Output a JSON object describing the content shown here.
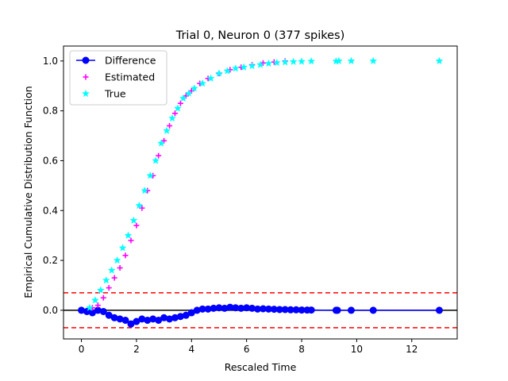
{
  "chart_data": {
    "type": "scatter",
    "title": "Trial 0, Neuron 0 (377 spikes)",
    "xlabel": "Rescaled Time",
    "ylabel": "Empirical Cumulative Distribution Function",
    "xlim": [
      -0.65,
      13.65
    ],
    "ylim": [
      -0.115,
      1.06
    ],
    "x_ticks": [
      0,
      2,
      4,
      6,
      8,
      10,
      12
    ],
    "y_ticks": [
      0.0,
      0.2,
      0.4,
      0.6,
      0.8,
      1.0
    ],
    "x_tick_labels": [
      "0",
      "2",
      "4",
      "6",
      "8",
      "10",
      "12"
    ],
    "y_tick_labels": [
      "0.0",
      "0.2",
      "0.4",
      "0.6",
      "0.8",
      "1.0"
    ],
    "grid": false,
    "legend_position": "top-left",
    "confidence_band": [
      -0.07,
      0.07
    ],
    "zero_line": 0,
    "series": [
      {
        "name": "Difference",
        "marker": "circle",
        "color": "#0000ff",
        "x": [
          0.0,
          0.2,
          0.4,
          0.6,
          0.8,
          1.0,
          1.2,
          1.4,
          1.6,
          1.8,
          2.0,
          2.2,
          2.4,
          2.6,
          2.8,
          3.0,
          3.2,
          3.4,
          3.6,
          3.8,
          4.0,
          4.2,
          4.4,
          4.6,
          4.8,
          5.0,
          5.2,
          5.4,
          5.6,
          5.8,
          6.0,
          6.2,
          6.4,
          6.6,
          6.8,
          7.0,
          7.2,
          7.4,
          7.6,
          7.8,
          8.0,
          8.2,
          8.35,
          9.25,
          9.3,
          9.8,
          10.6,
          13.0
        ],
        "y": [
          0.0,
          -0.005,
          -0.01,
          0.0,
          -0.005,
          -0.02,
          -0.03,
          -0.035,
          -0.04,
          -0.055,
          -0.045,
          -0.035,
          -0.04,
          -0.035,
          -0.04,
          -0.03,
          -0.035,
          -0.03,
          -0.025,
          -0.02,
          -0.01,
          0.0,
          0.005,
          0.005,
          0.008,
          0.01,
          0.008,
          0.012,
          0.01,
          0.008,
          0.01,
          0.008,
          0.005,
          0.006,
          0.005,
          0.004,
          0.003,
          0.003,
          0.002,
          0.002,
          0.001,
          0.001,
          0.001,
          0.0,
          0.0,
          0.0,
          0.0,
          0.0
        ]
      },
      {
        "name": "Estimated",
        "marker": "plus",
        "color": "#ff00ff",
        "x": [
          0.4,
          0.6,
          0.8,
          1.0,
          1.2,
          1.4,
          1.6,
          1.8,
          2.0,
          2.2,
          2.4,
          2.6,
          2.8,
          3.0,
          3.2,
          3.4,
          3.6,
          3.8,
          4.0,
          4.3,
          4.6,
          5.0,
          5.4,
          5.8,
          6.2,
          6.6,
          7.0,
          7.4
        ],
        "y": [
          0.01,
          0.02,
          0.05,
          0.09,
          0.13,
          0.17,
          0.22,
          0.28,
          0.34,
          0.41,
          0.48,
          0.54,
          0.62,
          0.68,
          0.74,
          0.79,
          0.83,
          0.86,
          0.88,
          0.91,
          0.93,
          0.95,
          0.965,
          0.975,
          0.985,
          0.992,
          0.996,
          1.0
        ]
      },
      {
        "name": "True",
        "marker": "star",
        "color": "#00ffff",
        "x": [
          0.3,
          0.5,
          0.7,
          0.9,
          1.1,
          1.3,
          1.5,
          1.7,
          1.9,
          2.1,
          2.3,
          2.5,
          2.7,
          2.9,
          3.1,
          3.3,
          3.5,
          3.7,
          3.9,
          4.1,
          4.4,
          4.7,
          5.0,
          5.3,
          5.6,
          5.9,
          6.2,
          6.5,
          6.8,
          7.1,
          7.4,
          7.7,
          8.0,
          8.35,
          9.25,
          9.35,
          9.8,
          10.6,
          13.0
        ],
        "y": [
          0.01,
          0.04,
          0.08,
          0.12,
          0.16,
          0.2,
          0.25,
          0.3,
          0.36,
          0.42,
          0.48,
          0.54,
          0.6,
          0.67,
          0.72,
          0.77,
          0.81,
          0.85,
          0.87,
          0.89,
          0.91,
          0.93,
          0.95,
          0.96,
          0.97,
          0.975,
          0.98,
          0.985,
          0.99,
          0.993,
          0.995,
          0.997,
          0.998,
          0.999,
          0.999,
          1.0,
          1.0,
          1.0,
          1.0
        ]
      }
    ]
  }
}
